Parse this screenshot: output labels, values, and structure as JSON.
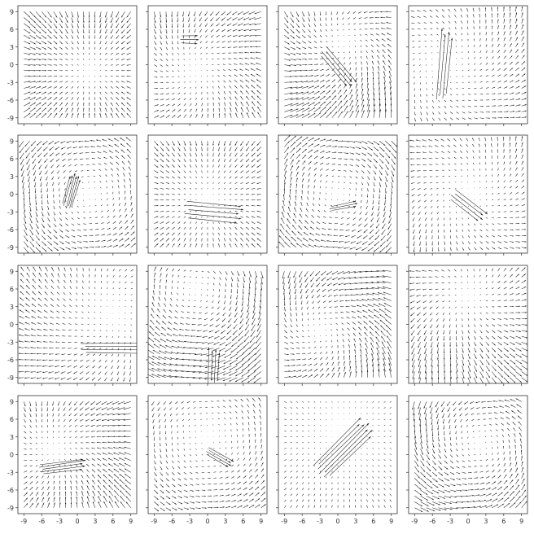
{
  "chart_data": {
    "type": "quiver",
    "layout": {
      "rows": 4,
      "cols": 4
    },
    "x_range": [
      -10,
      10
    ],
    "y_range": [
      -10,
      10
    ],
    "x_ticks": [
      -9,
      -6,
      -3,
      0,
      3,
      6,
      9
    ],
    "y_ticks": [
      -9,
      -6,
      -3,
      0,
      3,
      6,
      9
    ],
    "x_tick_labels": [
      "-9",
      "-6",
      "-3",
      "0",
      "3",
      "6",
      "9"
    ],
    "y_tick_labels": [
      "9",
      "6",
      "3",
      "0",
      "-3",
      "-6",
      "-9"
    ],
    "grid": false,
    "arrow_color": "#222222",
    "frame_color": "#333333",
    "panels": [
      {
        "field": [
          {
            "type": "sink",
            "center": [
              2,
              -1
            ],
            "strength": 0.18
          }
        ],
        "clusters": []
      },
      {
        "field": [
          {
            "type": "sink",
            "center": [
              -2,
              -1
            ],
            "strength": 0.14
          },
          {
            "type": "vortex",
            "center": [
              -2,
              -1
            ],
            "strength": 0.06
          }
        ],
        "clusters": [
          {
            "center": [
              -3,
              4.3
            ],
            "angle": 0,
            "length": 3.2,
            "count": 3,
            "spread": 0.6
          }
        ]
      },
      {
        "field": [
          {
            "type": "sink",
            "center": [
              1,
              4
            ],
            "strength": 0.16
          },
          {
            "type": "vortex",
            "center": [
              1,
              4
            ],
            "strength": 0.1
          }
        ],
        "clusters": [
          {
            "center": [
              0,
              -0.5
            ],
            "angle": -50,
            "length": 8,
            "count": 4,
            "spread": 0.5
          }
        ]
      },
      {
        "field": [
          {
            "type": "source",
            "center": [
              -4,
              0
            ],
            "strength": 0.08
          },
          {
            "type": "vortex",
            "center": [
              -4,
              0
            ],
            "strength": 0.08
          }
        ],
        "clusters": [
          {
            "center": [
              -4,
              0
            ],
            "angle": 85,
            "length": 12,
            "count": 4,
            "spread": 0.6
          }
        ]
      },
      {
        "field": [
          {
            "type": "vortex",
            "center": [
              2,
              0
            ],
            "strength": 0.17
          }
        ],
        "clusters": [
          {
            "center": [
              -1,
              0.5
            ],
            "angle": 75,
            "length": 6,
            "count": 6,
            "spread": 0.35
          }
        ]
      },
      {
        "field": [
          {
            "type": "sink",
            "center": [
              0,
              -1
            ],
            "strength": 0.14
          }
        ],
        "clusters": [
          {
            "center": [
              1,
              -3
            ],
            "angle": -5,
            "length": 10,
            "count": 5,
            "spread": 0.7
          }
        ]
      },
      {
        "field": [
          {
            "type": "vortex",
            "center": [
              0,
              0
            ],
            "strength": -0.2
          }
        ],
        "clusters": [
          {
            "center": [
              1,
              -2
            ],
            "angle": 12,
            "length": 5,
            "count": 3,
            "spread": 0.35
          }
        ]
      },
      {
        "field": [
          {
            "type": "source",
            "center": [
              0,
              0
            ],
            "strength": 0.1
          },
          {
            "type": "vortex",
            "center": [
              0,
              0
            ],
            "strength": 0.07
          }
        ],
        "clusters": [
          {
            "center": [
              0,
              -2
            ],
            "angle": -38,
            "length": 7,
            "count": 4,
            "spread": 0.55
          }
        ]
      },
      {
        "field": [
          {
            "type": "source",
            "center": [
              6,
              2
            ],
            "strength": 0.1
          },
          {
            "type": "vortex",
            "center": [
              6,
              2
            ],
            "strength": -0.06
          }
        ],
        "clusters": [
          {
            "center": [
              6,
              -4
            ],
            "angle": 0,
            "length": 11,
            "count": 4,
            "spread": 0.5
          }
        ]
      },
      {
        "field": [
          {
            "type": "vortex",
            "center": [
              -2,
              6
            ],
            "strength": -0.2
          }
        ],
        "clusters": [
          {
            "center": [
              1,
              -7
            ],
            "angle": 88,
            "length": 6,
            "count": 4,
            "spread": 0.6
          }
        ]
      },
      {
        "field": [
          {
            "type": "sink",
            "center": [
              -3,
              -1
            ],
            "strength": 0.14
          },
          {
            "type": "vortex",
            "center": [
              -3,
              -1
            ],
            "strength": 0.14
          }
        ],
        "clusters": []
      },
      {
        "field": [
          {
            "type": "source",
            "center": [
              0,
              5
            ],
            "strength": 0.16
          },
          {
            "type": "vortex",
            "center": [
              0,
              5
            ],
            "strength": 0.06
          }
        ],
        "clusters": []
      },
      {
        "field": [
          {
            "type": "sink",
            "center": [
              -4,
              1
            ],
            "strength": 0.16
          },
          {
            "type": "vortex",
            "center": [
              -4,
              1
            ],
            "strength": 0.04
          }
        ],
        "clusters": [
          {
            "center": [
              -2.5,
              -2
            ],
            "angle": 8,
            "length": 8,
            "count": 5,
            "spread": 0.4
          }
        ]
      },
      {
        "field": [
          {
            "type": "vortex",
            "center": [
              0,
              3
            ],
            "strength": 0.13
          }
        ],
        "clusters": [
          {
            "center": [
              2,
              -0.5
            ],
            "angle": -30,
            "length": 5,
            "count": 4,
            "spread": 0.35
          }
        ]
      },
      {
        "field": [
          {
            "type": "sink",
            "center": [
              1,
              4
            ],
            "strength": 0.06
          }
        ],
        "clusters": [
          {
            "center": [
              1,
              1
            ],
            "angle": 45,
            "length": 12,
            "count": 7,
            "spread": 0.55
          }
        ]
      },
      {
        "field": [
          {
            "type": "vortex",
            "center": [
              2,
              2
            ],
            "strength": 0.19
          },
          {
            "type": "sink",
            "center": [
              2,
              2
            ],
            "strength": 0.06
          }
        ],
        "clusters": []
      }
    ]
  }
}
